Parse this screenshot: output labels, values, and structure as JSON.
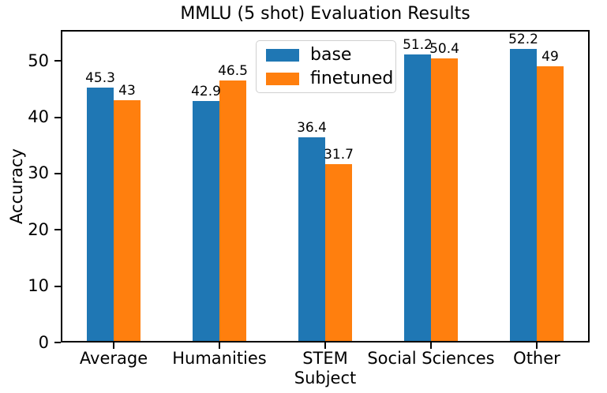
{
  "chart_data": {
    "type": "bar",
    "title": "MMLU (5 shot) Evaluation Results",
    "xlabel": "Subject",
    "ylabel": "Accuracy",
    "categories": [
      "Average",
      "Humanities",
      "STEM",
      "Social Sciences",
      "Other"
    ],
    "series": [
      {
        "name": "base",
        "color": "#1f77b4",
        "values": [
          45.3,
          42.9,
          36.4,
          51.2,
          52.2
        ]
      },
      {
        "name": "finetuned",
        "color": "#ff7f0e",
        "values": [
          43,
          46.5,
          31.7,
          50.4,
          49
        ]
      }
    ],
    "ylim": [
      0,
      55.5
    ],
    "yticks": [
      0,
      10,
      20,
      30,
      40,
      50
    ],
    "grid": false,
    "bar_value_labels": true,
    "legend_position": "upper center inside",
    "spine_color": "#000000",
    "background_color": "#ffffff"
  }
}
